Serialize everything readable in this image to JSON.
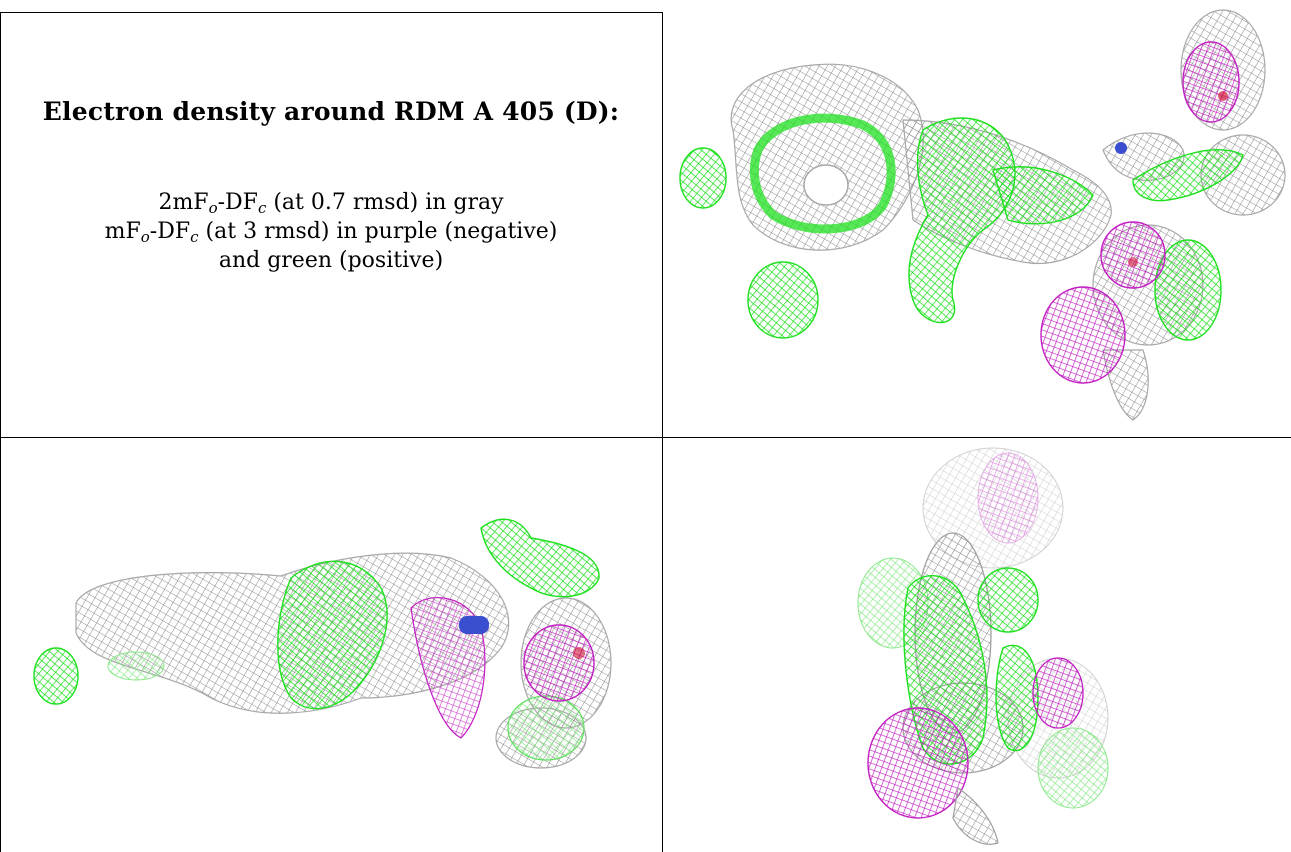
{
  "caption": {
    "title": "Electron density around RDM A 405 (D):",
    "line1": {
      "a": "2mF",
      "a_sub": "o",
      "b": "-DF",
      "b_sub": "c",
      "rest": " (at 0.7 rmsd) in gray"
    },
    "line2": {
      "a": "mF",
      "a_sub": "o",
      "b": "-DF",
      "b_sub": "c",
      "rest": " (at 3 rmsd) in purple (negative)"
    },
    "line3": "and green (positive)"
  },
  "colors": {
    "gray_mesh": "#9a9a9a",
    "negative": "#c81ec8",
    "positive": "#22e022",
    "atom_blue": "#3a4fd0",
    "atom_red": "#d01838"
  },
  "panels": {
    "top_right": "density-view-1",
    "bottom_left": "density-view-2",
    "bottom_right": "density-view-3"
  }
}
